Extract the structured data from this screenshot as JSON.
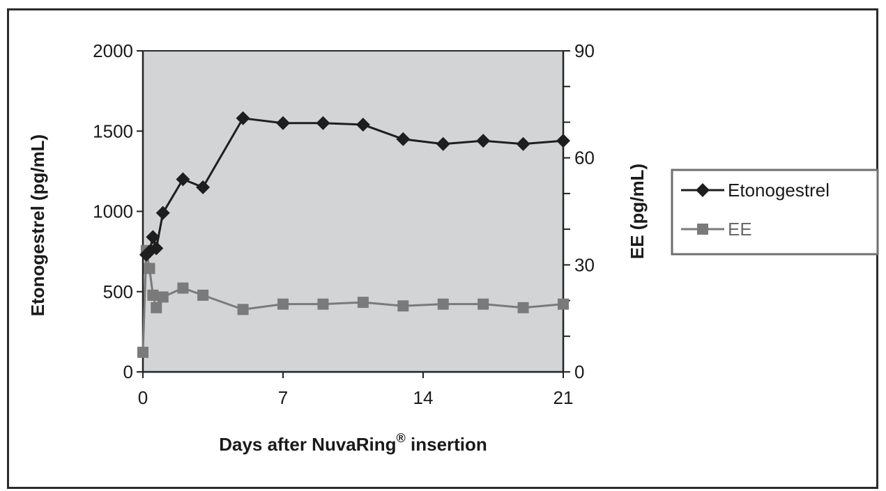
{
  "chart_data": {
    "type": "line",
    "xlabel": "Days after NuvaRing",
    "xlabel_superscript": "®",
    "xlabel_suffix": " insertion",
    "ylabel_left": "Etonogestrel (pg/mL)",
    "ylabel_right": "EE (pg/mL)",
    "xlim": [
      0,
      21
    ],
    "ylim_left": [
      0,
      2000
    ],
    "ylim_right": [
      0,
      90
    ],
    "x_ticks": [
      0,
      7,
      14,
      21
    ],
    "y_left_ticks": [
      0,
      500,
      1000,
      1500,
      2000
    ],
    "y_right_ticks": [
      0,
      30,
      60,
      90
    ],
    "y_right_minor_step": 10,
    "background_color": "#d3d4d6",
    "grid": false,
    "legend_position": "right",
    "series": [
      {
        "name": "Etonogestrel",
        "axis": "left",
        "marker": "diamond",
        "color": "#1e1e1e",
        "x": [
          0.17,
          0.33,
          0.5,
          0.67,
          1,
          2,
          3,
          5,
          7,
          9,
          11,
          13,
          15,
          17,
          19,
          21
        ],
        "values": [
          730,
          750,
          840,
          770,
          990,
          1200,
          1150,
          1580,
          1550,
          1550,
          1540,
          1450,
          1420,
          1440,
          1420,
          1440
        ]
      },
      {
        "name": "EE",
        "axis": "right",
        "marker": "square",
        "color": "#7a7a7a",
        "x": [
          0,
          0.17,
          0.33,
          0.5,
          0.67,
          1,
          2,
          3,
          5,
          7,
          9,
          11,
          13,
          15,
          17,
          19,
          21
        ],
        "values": [
          5.5,
          34,
          29,
          21.5,
          18,
          21,
          23.5,
          21.5,
          17.5,
          19,
          19,
          19.5,
          18.5,
          19,
          19,
          18,
          19
        ]
      }
    ]
  }
}
